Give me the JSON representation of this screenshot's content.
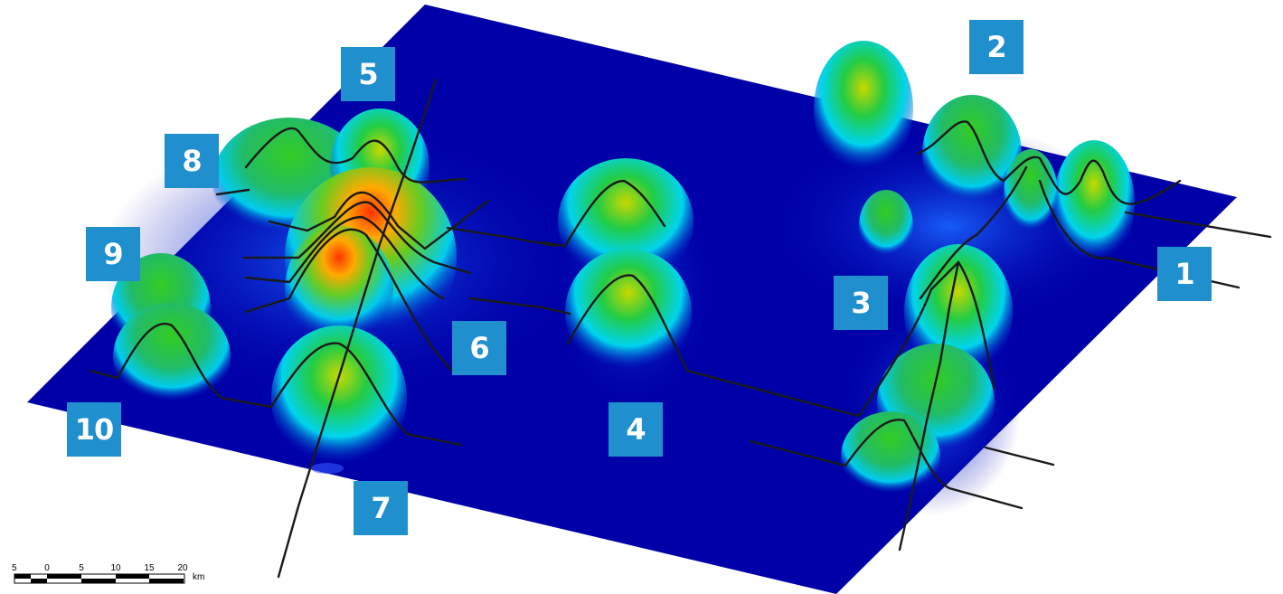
{
  "colors": {
    "plane": "#0000a8",
    "label_bg": "#1f8fce",
    "label_text": "#ffffff",
    "profile_line": "#1a1a1a",
    "ramp": [
      "#0033cc",
      "#00ccee",
      "#22cc55",
      "#aacc00",
      "#ff5500"
    ]
  },
  "labels": [
    {
      "id": "1",
      "text": "1"
    },
    {
      "id": "2",
      "text": "2"
    },
    {
      "id": "3",
      "text": "3"
    },
    {
      "id": "4",
      "text": "4"
    },
    {
      "id": "5",
      "text": "5"
    },
    {
      "id": "6",
      "text": "6"
    },
    {
      "id": "7",
      "text": "7"
    },
    {
      "id": "8",
      "text": "8"
    },
    {
      "id": "9",
      "text": "9"
    },
    {
      "id": "10",
      "text": "10"
    }
  ],
  "scale_bar": {
    "ticks": [
      "5",
      "0",
      "5",
      "10",
      "15",
      "20"
    ],
    "unit": "km"
  }
}
